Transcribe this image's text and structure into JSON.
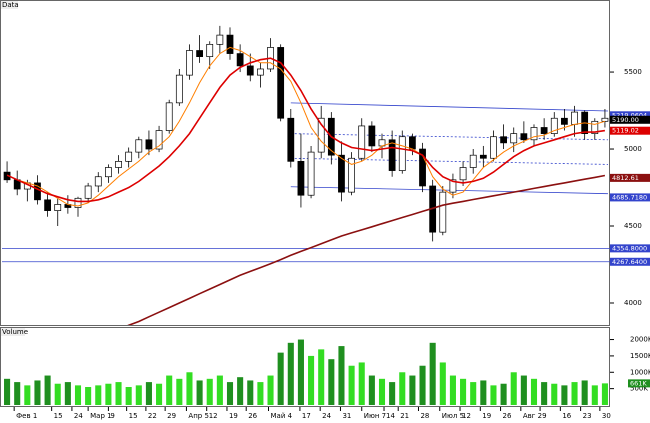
{
  "chart_data": {
    "type": "candlestick",
    "title": "Data",
    "volume_title": "Volume",
    "xlim": [
      0,
      60
    ],
    "xticks": [
      {
        "value": 1.2,
        "label": "Фев 1"
      },
      {
        "value": 4.9,
        "label": "15"
      },
      {
        "value": 6.9,
        "label": "24"
      },
      {
        "value": 8.5,
        "label": "Мар 1"
      },
      {
        "value": 10.5,
        "label": "9"
      },
      {
        "value": 12.3,
        "label": "15"
      },
      {
        "value": 14.2,
        "label": "22"
      },
      {
        "value": 16.1,
        "label": "29"
      },
      {
        "value": 18.2,
        "label": "Апр 5"
      },
      {
        "value": 20.2,
        "label": "12"
      },
      {
        "value": 22.2,
        "label": "19"
      },
      {
        "value": 24.1,
        "label": "26"
      },
      {
        "value": 26.3,
        "label": "Май 4"
      },
      {
        "value": 29.4,
        "label": "17"
      },
      {
        "value": 31.4,
        "label": "24"
      },
      {
        "value": 33.4,
        "label": "31"
      },
      {
        "value": 35.5,
        "label": "Июн 7"
      },
      {
        "value": 37.7,
        "label": "14"
      },
      {
        "value": 39.1,
        "label": "21"
      },
      {
        "value": 41.1,
        "label": "28"
      },
      {
        "value": 43.2,
        "label": "Июл 5"
      },
      {
        "value": 45.2,
        "label": "12"
      },
      {
        "value": 47.2,
        "label": "19"
      },
      {
        "value": 49.2,
        "label": "26"
      },
      {
        "value": 51.2,
        "label": "Авг 2"
      },
      {
        "value": 53.1,
        "label": "9"
      },
      {
        "value": 55.1,
        "label": "16"
      },
      {
        "value": 57.1,
        "label": "23"
      },
      {
        "value": 59.0,
        "label": "30"
      }
    ],
    "ylim": [
      3857,
      5968
    ],
    "yticks": [
      4000,
      4500,
      5000,
      5500
    ],
    "up_color": "#ffffff",
    "down_color": "#000000",
    "candles": [
      [
        4850,
        4920,
        4780,
        4800
      ],
      [
        4800,
        4860,
        4700,
        4740
      ],
      [
        4740,
        4800,
        4660,
        4780
      ],
      [
        4780,
        4830,
        4640,
        4670
      ],
      [
        4670,
        4720,
        4560,
        4600
      ],
      [
        4600,
        4680,
        4500,
        4640
      ],
      [
        4640,
        4700,
        4580,
        4620
      ],
      [
        4620,
        4690,
        4560,
        4680
      ],
      [
        4680,
        4780,
        4650,
        4760
      ],
      [
        4760,
        4850,
        4720,
        4820
      ],
      [
        4820,
        4900,
        4780,
        4880
      ],
      [
        4880,
        4960,
        4840,
        4920
      ],
      [
        4920,
        5010,
        4880,
        4980
      ],
      [
        4980,
        5080,
        4940,
        5060
      ],
      [
        5060,
        5120,
        4960,
        5000
      ],
      [
        5000,
        5150,
        4980,
        5120
      ],
      [
        5120,
        5320,
        5100,
        5300
      ],
      [
        5300,
        5520,
        5280,
        5480
      ],
      [
        5480,
        5680,
        5450,
        5640
      ],
      [
        5640,
        5740,
        5560,
        5600
      ],
      [
        5600,
        5700,
        5520,
        5680
      ],
      [
        5680,
        5800,
        5620,
        5740
      ],
      [
        5740,
        5790,
        5580,
        5620
      ],
      [
        5620,
        5680,
        5500,
        5540
      ],
      [
        5540,
        5620,
        5440,
        5480
      ],
      [
        5480,
        5560,
        5400,
        5520
      ],
      [
        5520,
        5720,
        5500,
        5660
      ],
      [
        5660,
        5680,
        5180,
        5200
      ],
      [
        5200,
        5260,
        4880,
        4920
      ],
      [
        4920,
        5100,
        4620,
        4700
      ],
      [
        4700,
        5020,
        4680,
        4980
      ],
      [
        4980,
        5280,
        4940,
        5200
      ],
      [
        5200,
        5240,
        4900,
        4960
      ],
      [
        4960,
        5050,
        4660,
        4720
      ],
      [
        4720,
        4980,
        4700,
        4940
      ],
      [
        4940,
        5200,
        4920,
        5150
      ],
      [
        5150,
        5180,
        4980,
        5020
      ],
      [
        5020,
        5100,
        4940,
        5060
      ],
      [
        5060,
        5120,
        4820,
        4860
      ],
      [
        4860,
        5120,
        4840,
        5080
      ],
      [
        5080,
        5100,
        4960,
        5000
      ],
      [
        5000,
        5040,
        4720,
        4760
      ],
      [
        4760,
        4800,
        4400,
        4460
      ],
      [
        4460,
        4760,
        4440,
        4720
      ],
      [
        4720,
        4840,
        4680,
        4800
      ],
      [
        4800,
        4920,
        4760,
        4880
      ],
      [
        4880,
        5000,
        4840,
        4960
      ],
      [
        4960,
        5020,
        4880,
        4940
      ],
      [
        4940,
        5120,
        4920,
        5080
      ],
      [
        5080,
        5160,
        5000,
        5040
      ],
      [
        5040,
        5140,
        4980,
        5100
      ],
      [
        5100,
        5180,
        5040,
        5060
      ],
      [
        5060,
        5160,
        5020,
        5140
      ],
      [
        5140,
        5200,
        5060,
        5100
      ],
      [
        5100,
        5240,
        5080,
        5200
      ],
      [
        5200,
        5260,
        5120,
        5160
      ],
      [
        5160,
        5280,
        5080,
        5240
      ],
      [
        5240,
        5250,
        5060,
        5100
      ],
      [
        5100,
        5200,
        5060,
        5180
      ],
      [
        5180,
        5260,
        5140,
        5200
      ]
    ],
    "series": [
      {
        "color": "#ff7f00",
        "values": [
          4830,
          4800,
          4780,
          4760,
          4720,
          4680,
          4640,
          4630,
          4650,
          4700,
          4760,
          4820,
          4870,
          4920,
          4980,
          5020,
          5080,
          5180,
          5300,
          5430,
          5540,
          5620,
          5660,
          5640,
          5600,
          5560,
          5560,
          5520,
          5440,
          5300,
          5140,
          5050,
          4990,
          4940,
          4900,
          4920,
          4960,
          5020,
          5040,
          5020,
          5000,
          4960,
          4820,
          4740,
          4700,
          4720,
          4800,
          4880,
          4930,
          4980,
          5020,
          5050,
          5080,
          5090,
          5120,
          5140,
          5160,
          5170,
          5160,
          5180
        ]
      },
      {
        "color": "#dd0000",
        "values": [
          4830,
          4800,
          4770,
          4740,
          4710,
          4690,
          4670,
          4660,
          4660,
          4670,
          4690,
          4720,
          4750,
          4790,
          4840,
          4890,
          4950,
          5020,
          5100,
          5200,
          5300,
          5400,
          5480,
          5530,
          5560,
          5580,
          5590,
          5560,
          5480,
          5380,
          5260,
          5160,
          5080,
          5040,
          5010,
          5000,
          4990,
          5000,
          5010,
          5000,
          4990,
          4960,
          4880,
          4820,
          4790,
          4780,
          4790,
          4810,
          4850,
          4900,
          4950,
          4990,
          5020,
          5040,
          5060,
          5080,
          5100,
          5110,
          5110,
          5120
        ]
      },
      {
        "color": "#8b1010",
        "values": [
          null,
          null,
          null,
          null,
          null,
          null,
          null,
          null,
          null,
          null,
          null,
          3830,
          3855,
          3880,
          3910,
          3940,
          3970,
          4000,
          4030,
          4060,
          4090,
          4120,
          4150,
          4180,
          4205,
          4230,
          4255,
          4282,
          4310,
          4335,
          4360,
          4385,
          4410,
          4435,
          4455,
          4475,
          4495,
          4515,
          4535,
          4555,
          4575,
          4595,
          4615,
          4635,
          4648,
          4660,
          4672,
          4684,
          4696,
          4708,
          4720,
          4732,
          4744,
          4756,
          4768,
          4780,
          4792,
          4804,
          4816,
          4828
        ]
      }
    ],
    "trendlines": [
      {
        "x": [
          28.5,
          59.8
        ],
        "y": [
          5300,
          5247
        ],
        "color": "#3344cc",
        "dashed": false
      },
      {
        "x": [
          28.5,
          59.8
        ],
        "y": [
          4755,
          4710
        ],
        "color": "#3344cc",
        "dashed": false
      },
      {
        "x": [
          28.5,
          59.8
        ],
        "y": [
          5100,
          5060
        ],
        "color": "#3344cc",
        "dashed": true
      },
      {
        "x": [
          28.5,
          59.8
        ],
        "y": [
          4940,
          4900
        ],
        "color": "#3344cc",
        "dashed": true
      },
      {
        "x": [
          0,
          60
        ],
        "y": [
          4354.8,
          4354.8
        ],
        "color": "#3344cc",
        "dashed": false
      },
      {
        "x": [
          0,
          60
        ],
        "y": [
          4267.64,
          4267.64
        ],
        "color": "#3344cc",
        "dashed": false
      }
    ],
    "price_labels": [
      {
        "value": 5219.0604,
        "label": "5219.0604",
        "color": "#3344cc"
      },
      {
        "value": 5190,
        "label": "5190.00",
        "color": "#000000"
      },
      {
        "value": 5119.02,
        "label": "5119.02",
        "color": "#dd0000"
      },
      {
        "value": 4812.61,
        "label": "4812.61",
        "color": "#8b1010"
      },
      {
        "value": 4685.718,
        "label": "4685.7180",
        "color": "#3344cc"
      },
      {
        "value": 4354.8,
        "label": "4354.8000",
        "color": "#3344cc"
      },
      {
        "value": 4267.64,
        "label": "4267.6400",
        "color": "#3344cc"
      }
    ],
    "volume": [
      800,
      700,
      600,
      750,
      900,
      650,
      700,
      600,
      550,
      600,
      650,
      700,
      550,
      600,
      700,
      650,
      900,
      800,
      1000,
      750,
      800,
      900,
      700,
      850,
      750,
      700,
      900,
      1600,
      1900,
      2000,
      1500,
      1700,
      1400,
      1800,
      1200,
      1300,
      900,
      800,
      700,
      1000,
      900,
      1200,
      1900,
      1300,
      900,
      800,
      700,
      750,
      600,
      650,
      1000,
      900,
      800,
      700,
      650,
      600,
      700,
      750,
      600,
      661
    ],
    "volume_up_color": "#33dd22",
    "volume_down_color": "#1f8f1f",
    "vlim": [
      0,
      2200
    ],
    "vticks": [
      {
        "value": 500,
        "label": "500K"
      },
      {
        "value": 1000,
        "label": "1000K"
      },
      {
        "value": 1500,
        "label": "1500K"
      },
      {
        "value": 2000,
        "label": "2000K"
      }
    ],
    "volume_label": {
      "value": 661,
      "label": "661K"
    }
  }
}
